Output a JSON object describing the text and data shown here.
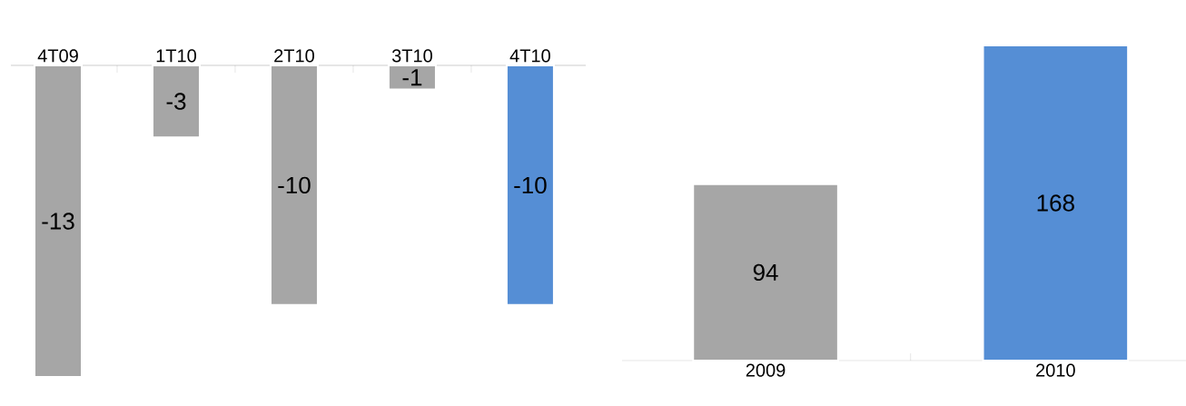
{
  "chart_data": [
    {
      "type": "bar",
      "categories": [
        "4T09",
        "1T10",
        "2T10",
        "3T10",
        "4T10"
      ],
      "values": [
        -13,
        -3,
        -10,
        -1,
        -10
      ],
      "colors": [
        "#a6a6a6",
        "#a6a6a6",
        "#a6a6a6",
        "#a6a6a6",
        "#558ed5"
      ],
      "data_labels": true
    },
    {
      "type": "bar",
      "categories": [
        "2009",
        "2010"
      ],
      "values": [
        94,
        168
      ],
      "colors": [
        "#a6a6a6",
        "#558ed5"
      ],
      "data_labels": true
    }
  ]
}
